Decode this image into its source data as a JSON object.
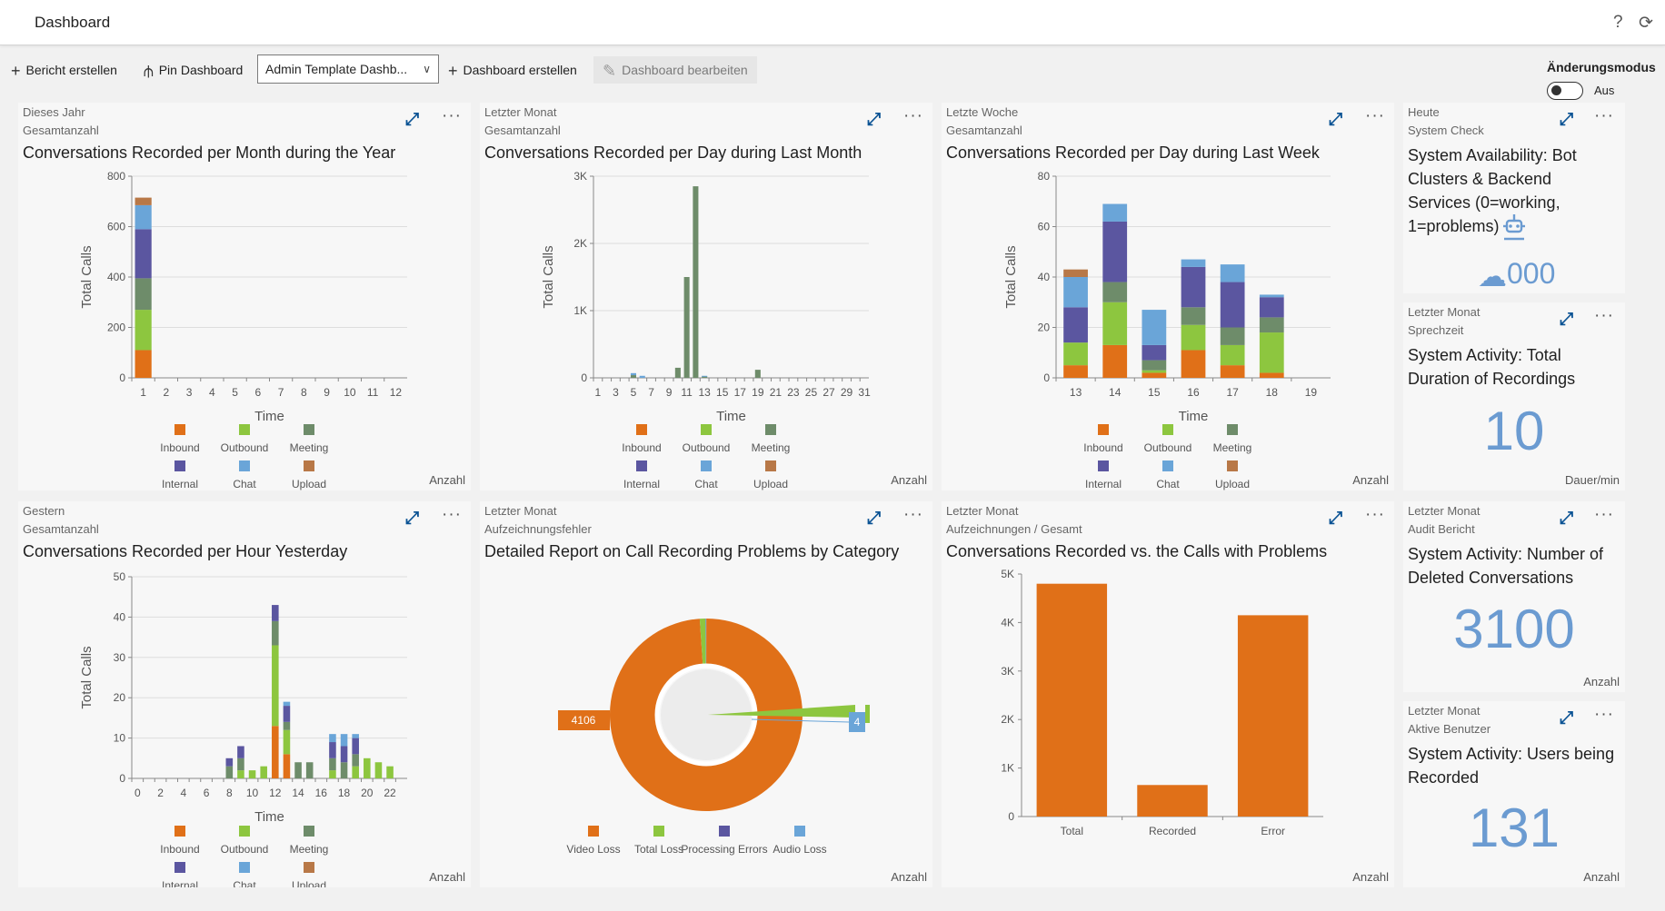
{
  "header": {
    "title": "Dashboard",
    "help_icon": "?",
    "refresh_icon": "refresh-icon"
  },
  "toolbar": {
    "create_report": "Bericht erstellen",
    "pin_dashboard": "Pin Dashboard",
    "selected_dashboard": "Admin Template Dashb...",
    "create_dashboard": "Dashboard erstellen",
    "edit_dashboard": "Dashboard bearbeiten",
    "mode_label": "Änderungsmodus",
    "mode_value": "Aus"
  },
  "colors": {
    "Inbound": "#e07018",
    "Outbound": "#8dc63f",
    "Meeting": "#6e8c6a",
    "Internal": "#5b56a0",
    "Chat": "#6aa5d8",
    "Upload": "#b87847",
    "kpi": "#6b9bd1",
    "expand": "#0b5394"
  },
  "legend": [
    "Inbound",
    "Outbound",
    "Meeting",
    "Internal",
    "Chat",
    "Upload"
  ],
  "cards": {
    "year": {
      "sub1": "Dieses Jahr",
      "sub2": "Gesamtanzahl",
      "title": "Conversations Recorded per Month during the Year",
      "unit": "Anzahl"
    },
    "month": {
      "sub1": "Letzter Monat",
      "sub2": "Gesamtanzahl",
      "title": "Conversations Recorded per Day during Last Month",
      "unit": "Anzahl"
    },
    "week": {
      "sub1": "Letzte Woche",
      "sub2": "Gesamtanzahl",
      "title": "Conversations Recorded per Day during Last Week",
      "unit": "Anzahl"
    },
    "avail": {
      "sub1": "Heute",
      "sub2": "System Check",
      "title": "System Availability: Bot Clusters & Backend Services (0=working, 1=problems)",
      "value": "000",
      "robot_icon": "robot-icon",
      "cloud_icon": "cloud-upload-icon"
    },
    "duration": {
      "sub1": "Letzter Monat",
      "sub2": "Sprechzeit",
      "title": "System Activity: Total Duration of Recordings",
      "value": "10",
      "unit": "Dauer/min"
    },
    "hour": {
      "sub1": "Gestern",
      "sub2": "Gesamtanzahl",
      "title": "Conversations Recorded per Hour Yesterday",
      "unit": "Anzahl"
    },
    "problems": {
      "sub1": "Letzter Monat",
      "sub2": "Aufzeichnungsfehler",
      "title": "Detailed Report on Call Recording Problems by Category",
      "unit": "Anzahl"
    },
    "vs": {
      "sub1": "Letzter Monat",
      "sub2": "Aufzeichnungen / Gesamt",
      "title": "Conversations Recorded vs. the Calls with Problems",
      "unit": "Anzahl"
    },
    "deleted": {
      "sub1": "Letzter Monat",
      "sub2": "Audit Bericht",
      "title": "System Activity: Number of Deleted Conversations",
      "value": "3100",
      "unit": "Anzahl"
    },
    "users": {
      "sub1": "Letzter Monat",
      "sub2": "Aktive Benutzer",
      "title": "System Activity: Users being Recorded",
      "value": "131",
      "unit": "Anzahl"
    }
  },
  "chart_data": [
    {
      "id": "year",
      "type": "bar",
      "stacked": true,
      "xlabel": "Time",
      "ylabel": "Total Calls",
      "ylim": [
        0,
        800
      ],
      "yticks": [
        "0",
        "200",
        "400",
        "600",
        "800"
      ],
      "categories": [
        "1",
        "2",
        "3",
        "4",
        "5",
        "6",
        "7",
        "8",
        "9",
        "10",
        "11",
        "12"
      ],
      "series": [
        {
          "name": "Inbound",
          "values": [
            110,
            0,
            0,
            0,
            0,
            0,
            0,
            0,
            0,
            0,
            0,
            0
          ]
        },
        {
          "name": "Outbound",
          "values": [
            160,
            0,
            0,
            0,
            0,
            0,
            0,
            0,
            0,
            0,
            0,
            0
          ]
        },
        {
          "name": "Meeting",
          "values": [
            125,
            0,
            0,
            0,
            0,
            0,
            0,
            0,
            0,
            0,
            0,
            0
          ]
        },
        {
          "name": "Internal",
          "values": [
            195,
            0,
            0,
            0,
            0,
            0,
            0,
            0,
            0,
            0,
            0,
            0
          ]
        },
        {
          "name": "Chat",
          "values": [
            95,
            0,
            0,
            0,
            0,
            0,
            0,
            0,
            0,
            0,
            0,
            0
          ]
        },
        {
          "name": "Upload",
          "values": [
            30,
            0,
            0,
            0,
            0,
            0,
            0,
            0,
            0,
            0,
            0,
            0
          ]
        }
      ]
    },
    {
      "id": "month",
      "type": "bar",
      "stacked": true,
      "xlabel": "Time",
      "ylabel": "Total Calls",
      "ylim": [
        0,
        3000
      ],
      "yticks": [
        "0",
        "1K",
        "2K",
        "3K"
      ],
      "categories": [
        "1",
        "2",
        "3",
        "4",
        "5",
        "6",
        "7",
        "8",
        "9",
        "10",
        "11",
        "12",
        "13",
        "14",
        "15",
        "16",
        "17",
        "18",
        "19",
        "20",
        "21",
        "22",
        "23",
        "24",
        "25",
        "26",
        "27",
        "28",
        "29",
        "30",
        "31"
      ],
      "tick_labels": [
        "1",
        "",
        "3",
        "",
        "5",
        "",
        "7",
        "",
        "9",
        "",
        "11",
        "",
        "13",
        "",
        "15",
        "",
        "17",
        "",
        "19",
        "",
        "21",
        "",
        "23",
        "",
        "25",
        "",
        "27",
        "",
        "29",
        "",
        "31"
      ],
      "series": [
        {
          "name": "Meeting",
          "values": [
            0,
            0,
            0,
            0,
            40,
            0,
            0,
            0,
            0,
            150,
            1500,
            2850,
            20,
            0,
            0,
            0,
            0,
            0,
            120,
            0,
            0,
            0,
            0,
            0,
            0,
            0,
            0,
            0,
            0,
            0,
            0
          ]
        },
        {
          "name": "Chat",
          "values": [
            0,
            0,
            0,
            0,
            30,
            30,
            0,
            0,
            0,
            0,
            0,
            0,
            10,
            0,
            0,
            0,
            0,
            0,
            0,
            0,
            0,
            0,
            0,
            0,
            0,
            0,
            0,
            0,
            0,
            0,
            0
          ]
        }
      ]
    },
    {
      "id": "week",
      "type": "bar",
      "stacked": true,
      "xlabel": "Time",
      "ylabel": "Total Calls",
      "ylim": [
        0,
        80
      ],
      "yticks": [
        "0",
        "20",
        "40",
        "60",
        "80"
      ],
      "categories": [
        "13",
        "14",
        "15",
        "16",
        "17",
        "18",
        "19"
      ],
      "series": [
        {
          "name": "Inbound",
          "values": [
            5,
            13,
            2,
            11,
            5,
            2,
            0
          ]
        },
        {
          "name": "Outbound",
          "values": [
            9,
            17,
            1,
            10,
            8,
            16,
            0
          ]
        },
        {
          "name": "Meeting",
          "values": [
            0,
            8,
            4,
            7,
            7,
            6,
            0
          ]
        },
        {
          "name": "Internal",
          "values": [
            14,
            24,
            6,
            16,
            18,
            8,
            0
          ]
        },
        {
          "name": "Chat",
          "values": [
            12,
            7,
            14,
            3,
            7,
            1,
            0
          ]
        },
        {
          "name": "Upload",
          "values": [
            3,
            0,
            0,
            0,
            0,
            0,
            0
          ]
        }
      ]
    },
    {
      "id": "hour",
      "type": "bar",
      "stacked": true,
      "xlabel": "Time",
      "ylabel": "Total Calls",
      "ylim": [
        0,
        50
      ],
      "yticks": [
        "0",
        "10",
        "20",
        "30",
        "40",
        "50"
      ],
      "categories": [
        "0",
        "1",
        "2",
        "3",
        "4",
        "5",
        "6",
        "7",
        "8",
        "9",
        "10",
        "11",
        "12",
        "13",
        "14",
        "15",
        "16",
        "17",
        "18",
        "19",
        "20",
        "21",
        "22",
        "23"
      ],
      "tick_labels": [
        "0",
        "",
        "2",
        "",
        "4",
        "",
        "6",
        "",
        "8",
        "",
        "10",
        "",
        "12",
        "",
        "14",
        "",
        "16",
        "",
        "18",
        "",
        "20",
        "",
        "22",
        ""
      ],
      "series": [
        {
          "name": "Inbound",
          "values": [
            0,
            0,
            0,
            0,
            0,
            0,
            0,
            0,
            0,
            0,
            0,
            0,
            13,
            6,
            0,
            0,
            0,
            0,
            0,
            0,
            0,
            0,
            0,
            0
          ]
        },
        {
          "name": "Outbound",
          "values": [
            0,
            0,
            0,
            0,
            0,
            0,
            0,
            0,
            0,
            2,
            2,
            3,
            20,
            6,
            0,
            0,
            0,
            2,
            0,
            3,
            5,
            4,
            3,
            0
          ]
        },
        {
          "name": "Meeting",
          "values": [
            0,
            0,
            0,
            0,
            0,
            0,
            0,
            0,
            3,
            3,
            0,
            0,
            6,
            2,
            4,
            4,
            0,
            3,
            4,
            3,
            0,
            0,
            0,
            0
          ]
        },
        {
          "name": "Internal",
          "values": [
            0,
            0,
            0,
            0,
            0,
            0,
            0,
            0,
            2,
            3,
            0,
            0,
            4,
            4,
            0,
            0,
            0,
            4,
            4,
            4,
            0,
            0,
            0,
            0
          ]
        },
        {
          "name": "Chat",
          "values": [
            0,
            0,
            0,
            0,
            0,
            0,
            0,
            0,
            0,
            0,
            0,
            0,
            0,
            1,
            0,
            0,
            0,
            2,
            3,
            1,
            0,
            0,
            0,
            0
          ]
        },
        {
          "name": "Upload",
          "values": [
            0,
            0,
            0,
            0,
            0,
            0,
            0,
            0,
            0,
            0,
            0,
            0,
            0,
            0,
            0,
            0,
            0,
            0,
            0,
            0,
            0,
            0,
            0,
            0
          ]
        }
      ]
    },
    {
      "id": "problems",
      "type": "pie",
      "donut": true,
      "labels": [
        "Video Loss",
        "Total Loss",
        "Processing Errors",
        "Audio Loss"
      ],
      "values": [
        4106,
        40,
        1,
        4
      ],
      "label_left": "4106",
      "label_right": "4",
      "legend_colors": [
        "#e07018",
        "#8dc63f",
        "#5b56a0",
        "#6aa5d8"
      ]
    },
    {
      "id": "vs",
      "type": "bar",
      "categories": [
        "Total",
        "Recorded",
        "Error"
      ],
      "values": [
        4800,
        650,
        4150
      ],
      "ylim": [
        0,
        5000
      ],
      "yticks": [
        "0",
        "1K",
        "2K",
        "3K",
        "4K",
        "5K"
      ],
      "color": "#e07018"
    }
  ]
}
